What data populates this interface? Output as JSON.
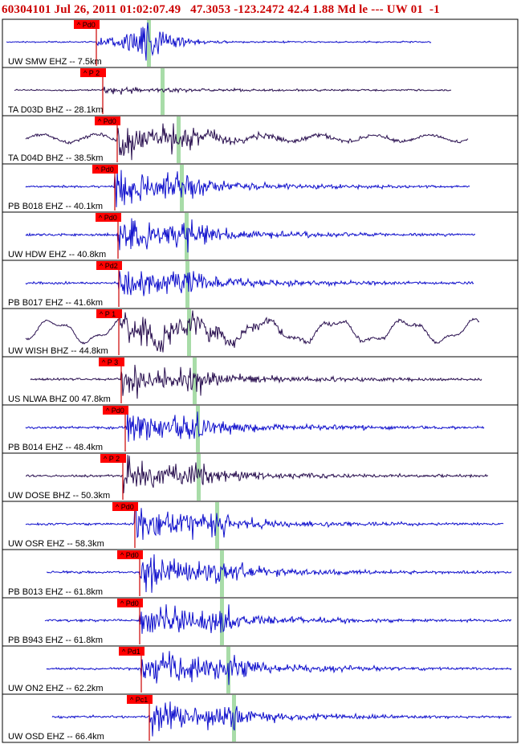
{
  "header": {
    "text": "60304101 Jul 26, 2011 01:02:07.49   47.3053 -123.2472 42.4 1.88 Md le --- UW 01  -1"
  },
  "colors": {
    "blue_trace": "#1010cc",
    "dark_trace": "#2a1050",
    "pick_flag": "#ff0000",
    "pick_line": "#cc0000",
    "s_marker": "#a8dca8",
    "frame": "#000000"
  },
  "chart_data": {
    "type": "seismogram-stack",
    "title": "60304101 Jul 26, 2011 01:02:07.49   47.3053 -123.2472 42.4 1.88 Md le --- UW 01  -1",
    "traces": [
      {
        "label": "UW SMW EHZ -- 7.5km",
        "pick": "Pd0",
        "color": "blue",
        "style": "burst"
      },
      {
        "label": "TA D03D BHZ -- 28.1km",
        "pick": "P 2",
        "color": "dark",
        "style": "quiet"
      },
      {
        "label": "TA D04D BHZ -- 38.5km",
        "pick": "Pd0",
        "color": "dark",
        "style": "noisy"
      },
      {
        "label": "PB B018 EHZ -- 40.1km",
        "pick": "Pd0",
        "color": "blue",
        "style": "normal"
      },
      {
        "label": "UW HDW EHZ -- 40.8km",
        "pick": "Pd0",
        "color": "blue",
        "style": "normal"
      },
      {
        "label": "PB B017 EHZ -- 41.6km",
        "pick": "Pd2",
        "color": "blue",
        "style": "normal"
      },
      {
        "label": "UW WISH BHZ -- 44.8km",
        "pick": "P 1",
        "color": "dark",
        "style": "wavy"
      },
      {
        "label": "US NLWA BHZ 00 47.8km",
        "pick": "P 3",
        "color": "dark",
        "style": "normal"
      },
      {
        "label": "PB B014 EHZ -- 48.4km",
        "pick": "Pd0",
        "color": "blue",
        "style": "normal"
      },
      {
        "label": "UW DOSE BHZ -- 50.3km",
        "pick": "P 2",
        "color": "dark",
        "style": "normal"
      },
      {
        "label": "UW OSR EHZ -- 58.3km",
        "pick": "Pd0",
        "color": "blue",
        "style": "normal"
      },
      {
        "label": "PB B013 EHZ -- 61.8km",
        "pick": "Pd0",
        "color": "blue",
        "style": "normal"
      },
      {
        "label": "PB B943 EHZ -- 61.8km",
        "pick": "Pd0",
        "color": "blue",
        "style": "normal"
      },
      {
        "label": "UW ON2 EHZ -- 62.2km",
        "pick": "Pd1",
        "color": "blue",
        "style": "normal"
      },
      {
        "label": "UW OSD EHZ -- 66.4km",
        "pick": "Pc1",
        "color": "blue",
        "style": "normal"
      }
    ]
  }
}
